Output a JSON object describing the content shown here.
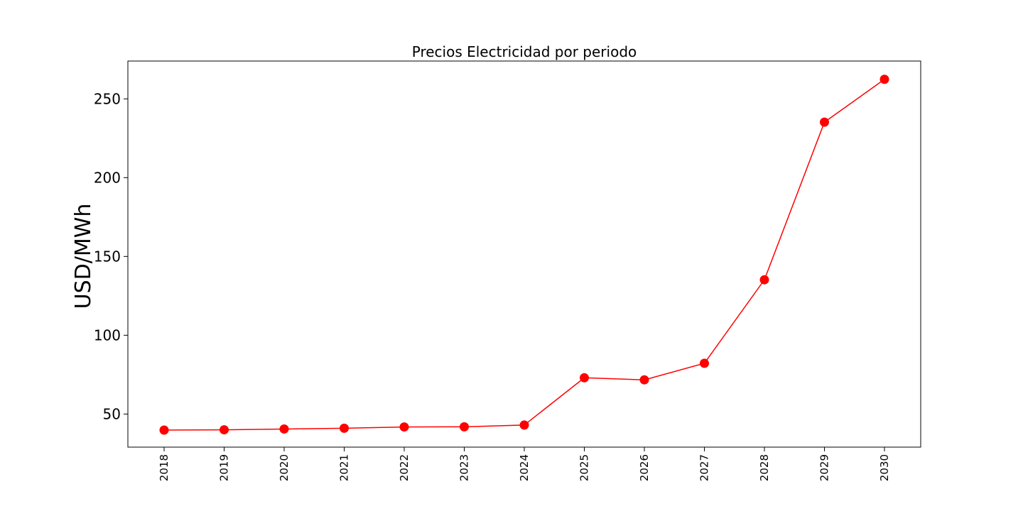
{
  "chart_data": {
    "type": "line",
    "title": "Precios Electricidad por periodo",
    "xlabel": "",
    "ylabel": "USD/MWh",
    "categories": [
      "2018",
      "2019",
      "2020",
      "2021",
      "2022",
      "2023",
      "2024",
      "2025",
      "2026",
      "2027",
      "2028",
      "2029",
      "2030"
    ],
    "series": [
      {
        "values": [
          39.8,
          40.0,
          40.5,
          41.0,
          41.8,
          41.9,
          43.0,
          73.0,
          71.7,
          82.2,
          135.2,
          235.2,
          262.4
        ],
        "color": "#ff0000",
        "marker": "circle"
      }
    ],
    "ylim": [
      29,
      274
    ],
    "yticks": [
      50,
      100,
      150,
      200,
      250
    ],
    "xtick_rotation": "vertical",
    "grid": false,
    "legend": "none"
  }
}
